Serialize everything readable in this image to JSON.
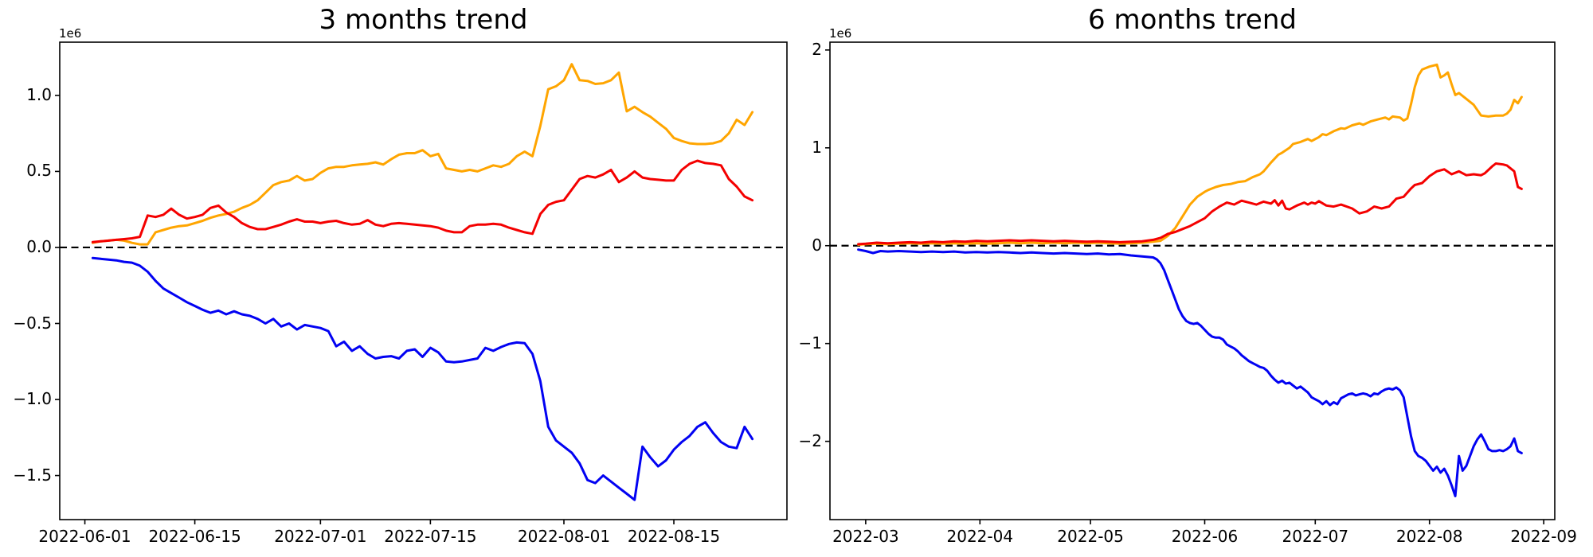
{
  "figure": {
    "background": "#ffffff",
    "axis_color": "#000000"
  },
  "chart_data": [
    {
      "type": "line",
      "title": "3 months trend",
      "offset_text": "1e6",
      "xlabel": "",
      "ylabel": "",
      "grid": false,
      "legend": null,
      "zero_line": {
        "style": "dashed",
        "color": "#000000",
        "value": 0
      },
      "x_epoch": "2022-06-01",
      "xlim_days": [
        -3.2,
        89.4
      ],
      "ylim": [
        -1.79,
        1.35
      ],
      "y_unit": "1e6",
      "x_ticks": [
        {
          "day": 0,
          "label": "2022-06-01"
        },
        {
          "day": 14,
          "label": "2022-06-15"
        },
        {
          "day": 30,
          "label": "2022-07-01"
        },
        {
          "day": 44,
          "label": "2022-07-15"
        },
        {
          "day": 61,
          "label": "2022-08-01"
        },
        {
          "day": 75,
          "label": "2022-08-15"
        }
      ],
      "y_ticks": [
        {
          "value": 1.0,
          "label": "1.0"
        },
        {
          "value": 0.5,
          "label": "0.5"
        },
        {
          "value": 0.0,
          "label": "0.0"
        },
        {
          "value": -0.5,
          "label": "−0.5"
        },
        {
          "value": -1.0,
          "label": "−1.0"
        },
        {
          "value": -1.5,
          "label": "−1.5"
        }
      ],
      "series": [
        {
          "name": "blue",
          "color": "#0202f2",
          "day_start": 1,
          "values": [
            -0.07,
            -0.075,
            -0.08,
            -0.085,
            -0.095,
            -0.1,
            -0.12,
            -0.16,
            -0.22,
            -0.27,
            -0.3,
            -0.33,
            -0.36,
            -0.385,
            -0.41,
            -0.43,
            -0.415,
            -0.44,
            -0.42,
            -0.44,
            -0.45,
            -0.47,
            -0.5,
            -0.47,
            -0.52,
            -0.5,
            -0.54,
            -0.51,
            -0.52,
            -0.53,
            -0.55,
            -0.65,
            -0.62,
            -0.68,
            -0.65,
            -0.7,
            -0.73,
            -0.72,
            -0.715,
            -0.73,
            -0.68,
            -0.67,
            -0.72,
            -0.66,
            -0.69,
            -0.75,
            -0.755,
            -0.75,
            -0.74,
            -0.73,
            -0.66,
            -0.68,
            -0.655,
            -0.635,
            -0.625,
            -0.63,
            -0.7,
            -0.88,
            -1.18,
            -1.27,
            -1.31,
            -1.35,
            -1.42,
            -1.53,
            -1.55,
            -1.5,
            -1.54,
            -1.58,
            -1.62,
            -1.66,
            -1.31,
            -1.38,
            -1.44,
            -1.4,
            -1.33,
            -1.28,
            -1.24,
            -1.18,
            -1.15,
            -1.22,
            -1.28,
            -1.31,
            -1.32,
            -1.18,
            -1.26
          ]
        },
        {
          "name": "orange",
          "color": "#ffa500",
          "day_start": 1,
          "values": [
            0.03,
            0.04,
            0.045,
            0.05,
            0.045,
            0.03,
            0.02,
            0.02,
            0.1,
            0.115,
            0.13,
            0.14,
            0.145,
            0.16,
            0.175,
            0.195,
            0.21,
            0.22,
            0.235,
            0.26,
            0.28,
            0.31,
            0.36,
            0.41,
            0.43,
            0.44,
            0.47,
            0.44,
            0.45,
            0.49,
            0.52,
            0.53,
            0.53,
            0.54,
            0.545,
            0.55,
            0.56,
            0.545,
            0.58,
            0.61,
            0.62,
            0.62,
            0.64,
            0.6,
            0.615,
            0.52,
            0.51,
            0.5,
            0.51,
            0.5,
            0.52,
            0.54,
            0.53,
            0.55,
            0.6,
            0.63,
            0.6,
            0.8,
            1.04,
            1.06,
            1.1,
            1.205,
            1.1,
            1.095,
            1.075,
            1.08,
            1.1,
            1.15,
            0.895,
            0.925,
            0.89,
            0.86,
            0.82,
            0.78,
            0.72,
            0.7,
            0.685,
            0.68,
            0.68,
            0.685,
            0.7,
            0.75,
            0.84,
            0.805,
            0.89
          ]
        },
        {
          "name": "red",
          "color": "#f40000",
          "day_start": 1,
          "values": [
            0.035,
            0.04,
            0.045,
            0.05,
            0.055,
            0.06,
            0.07,
            0.21,
            0.2,
            0.215,
            0.255,
            0.215,
            0.19,
            0.2,
            0.215,
            0.26,
            0.275,
            0.23,
            0.2,
            0.16,
            0.135,
            0.12,
            0.12,
            0.135,
            0.15,
            0.17,
            0.185,
            0.17,
            0.17,
            0.16,
            0.17,
            0.175,
            0.16,
            0.15,
            0.155,
            0.18,
            0.15,
            0.14,
            0.155,
            0.16,
            0.155,
            0.15,
            0.145,
            0.14,
            0.13,
            0.11,
            0.1,
            0.1,
            0.14,
            0.15,
            0.15,
            0.155,
            0.15,
            0.13,
            0.115,
            0.1,
            0.09,
            0.22,
            0.28,
            0.3,
            0.31,
            0.38,
            0.45,
            0.47,
            0.46,
            0.48,
            0.51,
            0.43,
            0.46,
            0.5,
            0.46,
            0.45,
            0.445,
            0.44,
            0.44,
            0.51,
            0.55,
            0.57,
            0.555,
            0.55,
            0.54,
            0.45,
            0.4,
            0.335,
            0.31
          ]
        }
      ]
    },
    {
      "type": "line",
      "title": "6 months trend",
      "offset_text": "1e6",
      "xlabel": "",
      "ylabel": "",
      "grid": false,
      "legend": null,
      "zero_line": {
        "style": "dashed",
        "color": "#000000",
        "value": 0
      },
      "x_epoch": "2022-03-01",
      "xlim_days": [
        -9.7,
        187.0
      ],
      "ylim": [
        -2.8,
        2.08
      ],
      "y_unit": "1e6",
      "x_ticks": [
        {
          "day": 0,
          "label": "2022-03"
        },
        {
          "day": 31,
          "label": "2022-04"
        },
        {
          "day": 61,
          "label": "2022-05"
        },
        {
          "day": 92,
          "label": "2022-06"
        },
        {
          "day": 122,
          "label": "2022-07"
        },
        {
          "day": 153,
          "label": "2022-08"
        },
        {
          "day": 184,
          "label": "2022-09"
        }
      ],
      "y_ticks": [
        {
          "value": 2,
          "label": "2"
        },
        {
          "value": 1,
          "label": "1"
        },
        {
          "value": 0,
          "label": "0"
        },
        {
          "value": -1,
          "label": "−1"
        },
        {
          "value": -2,
          "label": "−2"
        }
      ],
      "series": [
        {
          "name": "blue",
          "color": "#0202f2",
          "days": [
            -2,
            0,
            2,
            4,
            6,
            9,
            12,
            15,
            18,
            21,
            24,
            27,
            30,
            33,
            36,
            39,
            42,
            45,
            48,
            51,
            54,
            57,
            60,
            63,
            66,
            69,
            72,
            75,
            78,
            79,
            80,
            81,
            82,
            83,
            84,
            85,
            86,
            87,
            88,
            89,
            90,
            91,
            92,
            93,
            94,
            95,
            96,
            97,
            98,
            99,
            100,
            101,
            102,
            103,
            104,
            105,
            106,
            107,
            108,
            109,
            110,
            111,
            112,
            113,
            114,
            115,
            116,
            117,
            118,
            119,
            120,
            121,
            122,
            123,
            124,
            125,
            126,
            127,
            128,
            129,
            130,
            131,
            132,
            133,
            134,
            135,
            136,
            137,
            138,
            139,
            140,
            141,
            142,
            143,
            144,
            145,
            146,
            147,
            148,
            149,
            150,
            151,
            152,
            153,
            154,
            155,
            156,
            157,
            158,
            159,
            160,
            161,
            162,
            163,
            164,
            165,
            166,
            167,
            168,
            169,
            170,
            171,
            172,
            173,
            174,
            175,
            176,
            177,
            178
          ],
          "values": [
            -0.04,
            -0.055,
            -0.075,
            -0.055,
            -0.06,
            -0.055,
            -0.06,
            -0.065,
            -0.06,
            -0.065,
            -0.06,
            -0.07,
            -0.065,
            -0.07,
            -0.065,
            -0.07,
            -0.075,
            -0.07,
            -0.075,
            -0.08,
            -0.075,
            -0.08,
            -0.085,
            -0.08,
            -0.09,
            -0.085,
            -0.1,
            -0.11,
            -0.12,
            -0.14,
            -0.18,
            -0.25,
            -0.35,
            -0.45,
            -0.55,
            -0.65,
            -0.72,
            -0.77,
            -0.79,
            -0.8,
            -0.79,
            -0.82,
            -0.86,
            -0.9,
            -0.93,
            -0.94,
            -0.94,
            -0.96,
            -1.01,
            -1.03,
            -1.05,
            -1.08,
            -1.12,
            -1.15,
            -1.18,
            -1.2,
            -1.22,
            -1.24,
            -1.25,
            -1.28,
            -1.33,
            -1.37,
            -1.4,
            -1.38,
            -1.41,
            -1.4,
            -1.43,
            -1.46,
            -1.44,
            -1.47,
            -1.5,
            -1.55,
            -1.57,
            -1.59,
            -1.62,
            -1.59,
            -1.63,
            -1.6,
            -1.62,
            -1.56,
            -1.54,
            -1.52,
            -1.51,
            -1.53,
            -1.52,
            -1.51,
            -1.52,
            -1.54,
            -1.51,
            -1.52,
            -1.49,
            -1.47,
            -1.46,
            -1.47,
            -1.45,
            -1.48,
            -1.55,
            -1.75,
            -1.95,
            -2.1,
            -2.15,
            -2.17,
            -2.2,
            -2.25,
            -2.3,
            -2.26,
            -2.32,
            -2.28,
            -2.35,
            -2.45,
            -2.56,
            -2.15,
            -2.3,
            -2.25,
            -2.15,
            -2.05,
            -1.98,
            -1.93,
            -2.0,
            -2.08,
            -2.1,
            -2.1,
            -2.09,
            -2.1,
            -2.08,
            -2.05,
            -1.97,
            -2.1,
            -2.12
          ]
        },
        {
          "name": "orange",
          "color": "#ffa500",
          "days": [
            -2,
            0,
            3,
            6,
            9,
            12,
            15,
            18,
            21,
            24,
            27,
            30,
            33,
            36,
            39,
            42,
            45,
            48,
            51,
            54,
            57,
            60,
            63,
            66,
            69,
            72,
            75,
            78,
            80,
            82,
            84,
            86,
            88,
            90,
            92,
            93,
            95,
            97,
            99,
            101,
            103,
            105,
            107,
            108,
            110,
            111,
            112,
            113,
            115,
            116,
            118,
            120,
            121,
            123,
            124,
            125,
            127,
            129,
            130,
            132,
            134,
            135,
            137,
            139,
            141,
            142,
            143,
            145,
            146,
            147,
            148,
            149,
            150,
            151,
            153,
            155,
            156,
            157,
            158,
            159,
            160,
            161,
            163,
            165,
            167,
            169,
            171,
            173,
            174,
            175,
            176,
            177,
            178
          ],
          "values": [
            0.01,
            0.015,
            0.02,
            0.015,
            0.02,
            0.025,
            0.02,
            0.025,
            0.02,
            0.025,
            0.02,
            0.025,
            0.02,
            0.025,
            0.03,
            0.025,
            0.03,
            0.025,
            0.03,
            0.025,
            0.03,
            0.025,
            0.03,
            0.025,
            0.02,
            0.025,
            0.03,
            0.04,
            0.05,
            0.1,
            0.18,
            0.3,
            0.42,
            0.5,
            0.55,
            0.57,
            0.6,
            0.62,
            0.63,
            0.65,
            0.66,
            0.7,
            0.73,
            0.76,
            0.85,
            0.89,
            0.93,
            0.95,
            1.0,
            1.04,
            1.06,
            1.09,
            1.07,
            1.11,
            1.14,
            1.13,
            1.17,
            1.2,
            1.195,
            1.23,
            1.25,
            1.235,
            1.27,
            1.29,
            1.31,
            1.29,
            1.32,
            1.31,
            1.28,
            1.3,
            1.45,
            1.62,
            1.74,
            1.8,
            1.83,
            1.85,
            1.72,
            1.74,
            1.77,
            1.65,
            1.54,
            1.56,
            1.5,
            1.44,
            1.33,
            1.32,
            1.33,
            1.33,
            1.35,
            1.39,
            1.49,
            1.455,
            1.52
          ]
        },
        {
          "name": "red",
          "color": "#f40000",
          "days": [
            -2,
            0,
            3,
            6,
            9,
            12,
            15,
            18,
            21,
            24,
            27,
            30,
            33,
            36,
            39,
            42,
            45,
            48,
            51,
            54,
            57,
            60,
            63,
            66,
            69,
            72,
            75,
            78,
            80,
            82,
            84,
            86,
            88,
            90,
            92,
            94,
            96,
            98,
            100,
            102,
            104,
            106,
            108,
            110,
            111,
            112,
            113,
            114,
            115,
            117,
            119,
            120,
            121,
            122,
            123,
            125,
            127,
            129,
            132,
            134,
            136,
            138,
            140,
            142,
            144,
            146,
            148,
            149,
            151,
            153,
            155,
            157,
            159,
            161,
            163,
            165,
            167,
            168,
            170,
            171,
            173,
            174,
            176,
            177,
            178
          ],
          "values": [
            0.015,
            0.02,
            0.03,
            0.025,
            0.03,
            0.035,
            0.03,
            0.04,
            0.035,
            0.045,
            0.04,
            0.05,
            0.045,
            0.05,
            0.055,
            0.05,
            0.055,
            0.05,
            0.045,
            0.05,
            0.045,
            0.04,
            0.045,
            0.04,
            0.035,
            0.04,
            0.045,
            0.06,
            0.08,
            0.12,
            0.14,
            0.17,
            0.2,
            0.24,
            0.28,
            0.35,
            0.4,
            0.44,
            0.42,
            0.46,
            0.44,
            0.42,
            0.45,
            0.43,
            0.465,
            0.41,
            0.46,
            0.38,
            0.37,
            0.41,
            0.44,
            0.42,
            0.44,
            0.43,
            0.455,
            0.41,
            0.4,
            0.42,
            0.38,
            0.33,
            0.35,
            0.4,
            0.38,
            0.4,
            0.48,
            0.5,
            0.585,
            0.62,
            0.64,
            0.71,
            0.76,
            0.78,
            0.73,
            0.76,
            0.72,
            0.73,
            0.72,
            0.74,
            0.81,
            0.84,
            0.83,
            0.82,
            0.76,
            0.6,
            0.58
          ]
        }
      ]
    }
  ]
}
